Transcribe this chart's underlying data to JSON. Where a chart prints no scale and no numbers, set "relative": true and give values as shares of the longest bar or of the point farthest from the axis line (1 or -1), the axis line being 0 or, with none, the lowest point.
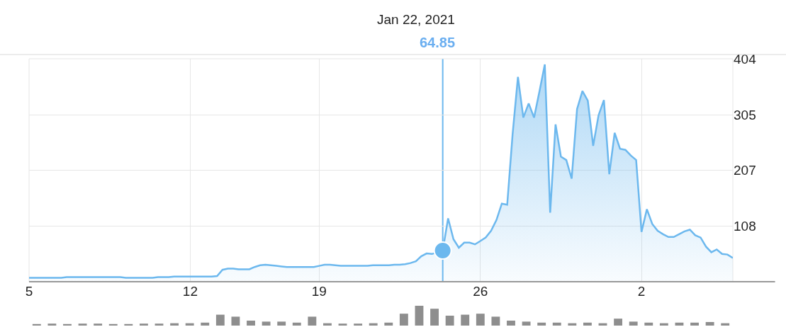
{
  "chart_data": [
    {
      "type": "area",
      "title": "Jan 22, 2021",
      "subtitle": "64.85",
      "categories": [
        "5",
        null,
        null,
        null,
        null,
        null,
        null,
        null,
        null,
        null,
        null,
        null,
        null,
        null,
        null,
        null,
        null,
        null,
        null,
        null,
        null,
        null,
        null,
        null,
        null,
        null,
        null,
        null,
        null,
        null,
        "12",
        null,
        null,
        null,
        null,
        null,
        null,
        null,
        null,
        null,
        null,
        null,
        null,
        null,
        null,
        null,
        null,
        null,
        null,
        null,
        null,
        null,
        null,
        null,
        "19",
        null,
        null,
        null,
        null,
        null,
        null,
        null,
        null,
        null,
        null,
        null,
        null,
        null,
        null,
        null,
        null,
        null,
        null,
        null,
        null,
        null,
        null,
        null,
        null,
        null,
        null,
        null,
        null,
        null,
        "26",
        null,
        null,
        null,
        null,
        null,
        null,
        null,
        null,
        null,
        null,
        null,
        null,
        null,
        null,
        null,
        null,
        null,
        null,
        null,
        null,
        null,
        null,
        null,
        null,
        null,
        null,
        null,
        null,
        null,
        "2",
        null,
        null,
        null,
        null,
        null,
        null,
        null,
        null,
        null,
        null,
        null,
        null,
        null,
        null,
        null,
        null,
        null
      ],
      "ylim": [
        10,
        404
      ],
      "yticks": [
        108,
        207,
        305,
        404
      ],
      "grid": true,
      "series": [
        {
          "type": "area",
          "color": "#6cb8ee",
          "values": [
            17,
            17,
            17,
            17,
            17,
            17,
            17,
            18,
            18,
            18,
            18,
            18,
            18,
            18,
            18,
            18,
            18,
            18,
            17,
            17,
            17,
            17,
            17,
            17,
            18,
            18,
            18,
            19,
            19,
            19,
            19,
            19,
            19,
            19,
            19,
            20,
            31,
            33,
            33,
            32,
            32,
            32,
            36,
            39,
            40,
            39,
            38,
            37,
            36,
            36,
            36,
            36,
            36,
            36,
            38,
            40,
            40,
            39,
            38,
            38,
            38,
            38,
            38,
            38,
            39,
            39,
            39,
            39,
            40,
            40,
            41,
            43,
            46,
            55,
            60,
            59,
            62,
            65,
            122,
            85,
            70,
            79,
            79,
            76,
            82,
            88,
            100,
            119,
            148,
            146,
            270,
            372,
            300,
            325,
            300,
            346,
            394,
            132,
            288,
            231,
            225,
            192,
            315,
            347,
            330,
            250,
            304,
            331,
            200,
            273,
            245,
            243,
            233,
            225,
            98,
            138,
            112,
            100,
            94,
            89,
            89,
            94,
            99,
            102,
            92,
            88,
            72,
            62,
            67,
            59,
            58,
            52
          ]
        },
        {
          "type": "scatter",
          "color": "#6cb8ee",
          "marker": "circle",
          "values": [
            null,
            null,
            null,
            null,
            null,
            null,
            null,
            null,
            null,
            null,
            null,
            null,
            null,
            null,
            null,
            null,
            null,
            null,
            null,
            null,
            null,
            null,
            null,
            null,
            null,
            null,
            null,
            null,
            null,
            null,
            null,
            null,
            null,
            null,
            null,
            null,
            null,
            null,
            null,
            null,
            null,
            null,
            null,
            null,
            null,
            null,
            null,
            null,
            null,
            null,
            null,
            null,
            null,
            null,
            null,
            null,
            null,
            null,
            null,
            null,
            null,
            null,
            null,
            null,
            null,
            null,
            null,
            null,
            null,
            null,
            null,
            null,
            null,
            null,
            null,
            null,
            null,
            65,
            null,
            null,
            null,
            null,
            null,
            null,
            null,
            null,
            null,
            null,
            null,
            null,
            null,
            null,
            null,
            null,
            null,
            null,
            null,
            null,
            null,
            null,
            null,
            null,
            null,
            null,
            null,
            null,
            null,
            null,
            null,
            null,
            null,
            null,
            null,
            null,
            null,
            null,
            null,
            null,
            null,
            null,
            null,
            null,
            null,
            null,
            null,
            null,
            null,
            null,
            null,
            null,
            null,
            null
          ]
        }
      ]
    },
    {
      "type": "bar",
      "relative": true,
      "color": "#8e8e8e",
      "categories": [
        null,
        null,
        null,
        null,
        null,
        null,
        null,
        null,
        null,
        null,
        null,
        null,
        null,
        null,
        null,
        null,
        null,
        null,
        null,
        null,
        null,
        null,
        null,
        null,
        null,
        null,
        null,
        null,
        null,
        null,
        null,
        null,
        null,
        null,
        null,
        null,
        null,
        null,
        null,
        null,
        null,
        null,
        null,
        null,
        null,
        null
      ],
      "values": [
        0.08,
        0.1,
        0.08,
        0.1,
        0.1,
        0.08,
        0.08,
        0.1,
        0.1,
        0.12,
        0.12,
        0.15,
        0.55,
        0.45,
        0.25,
        0.2,
        0.2,
        0.15,
        0.45,
        0.12,
        0.1,
        0.1,
        0.12,
        0.15,
        0.6,
        1,
        0.85,
        0.5,
        0.55,
        0.6,
        0.45,
        0.25,
        0.2,
        0.15,
        0.15,
        0.12,
        0.15,
        0.12,
        0.35,
        0.2,
        0.15,
        0.12,
        0.15,
        0.15,
        0.18,
        0.12
      ]
    }
  ]
}
